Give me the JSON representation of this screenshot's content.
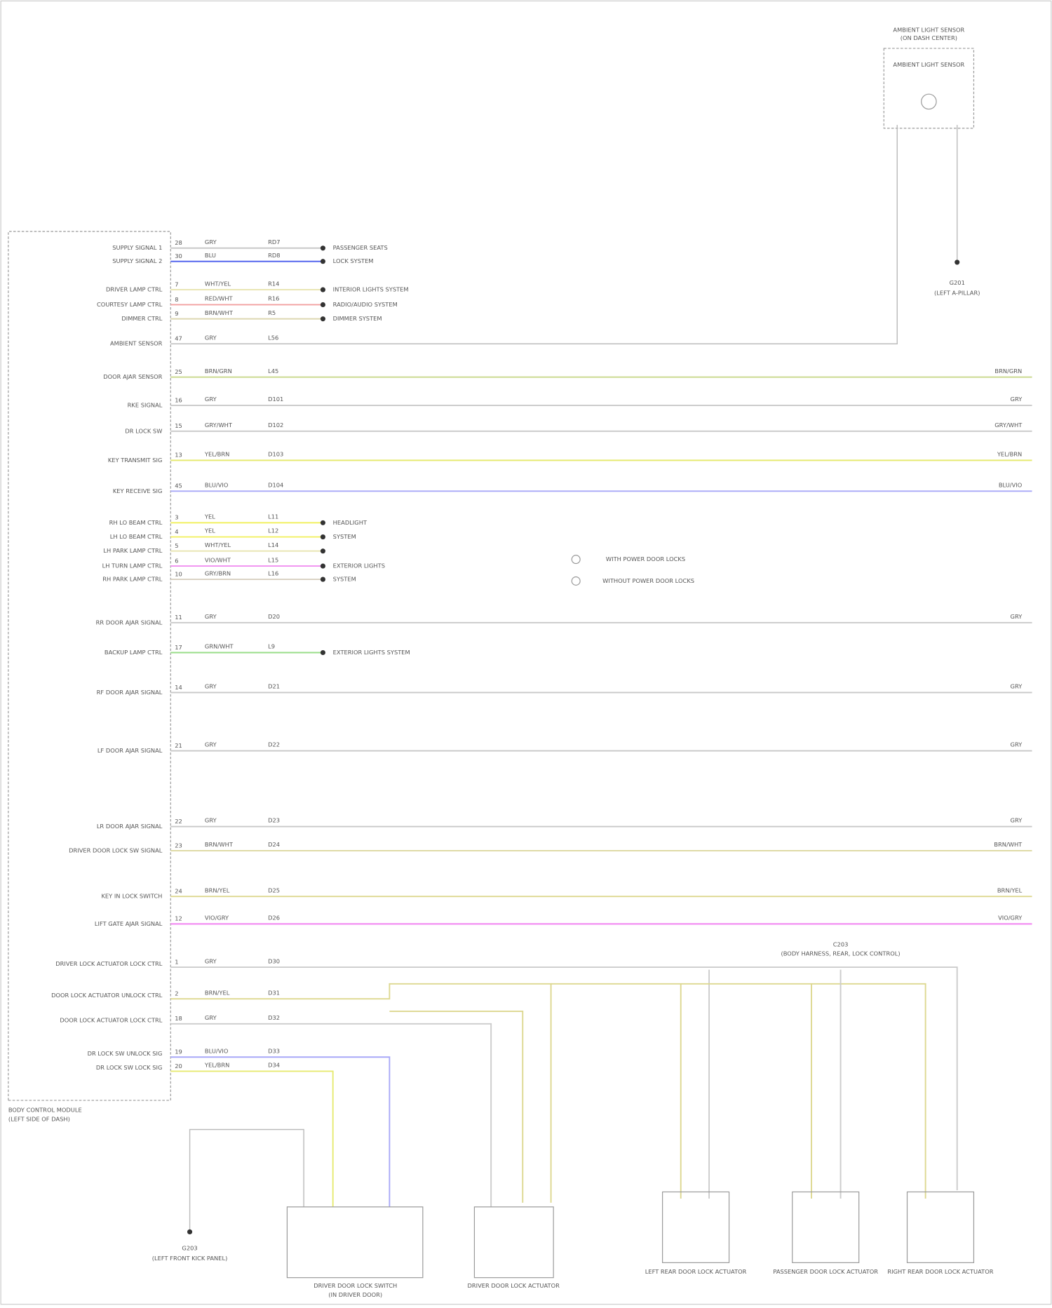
{
  "header": {
    "title": "AMBIENT LIGHT SENSOR",
    "subtitle": "(ON DASH CENTER)",
    "sensor": "AMBIENT LIGHT SENSOR"
  },
  "module": {
    "label": "BODY CONTROL MODULE",
    "location": "(LEFT SIDE OF DASH)"
  },
  "rows": [
    {
      "label": "SUPPLY SIGNAL 1",
      "pin": "28",
      "wire": "GRY",
      "circuit": "RD7",
      "color": "#c8c8c8",
      "dest": "PASSENGER SEATS"
    },
    {
      "label": "SUPPLY SIGNAL 2",
      "pin": "30",
      "wire": "BLU",
      "circuit": "RD8",
      "color": "#5566ee",
      "dest": "LOCK SYSTEM"
    },
    {
      "label": "DRIVER LAMP CTRL",
      "pin": "7",
      "wire": "WHT/YEL",
      "circuit": "R14",
      "color": "#e8e4b0",
      "dest": "INTERIOR LIGHTS SYSTEM"
    },
    {
      "label": "COURTESY LAMP CTRL",
      "pin": "8",
      "wire": "RED/WHT",
      "circuit": "R16",
      "color": "#f2a0a0",
      "dest": "RADIO/AUDIO SYSTEM"
    },
    {
      "label": "DIMMER CTRL",
      "pin": "9",
      "wire": "BRN/WHT",
      "circuit": "R5",
      "color": "#ddd8b0",
      "dest": "DIMMER SYSTEM"
    },
    {
      "label": "AMBIENT SENSOR",
      "pin": "47",
      "wire": "GRY",
      "circuit": "L56",
      "color": "#c8c8c8"
    },
    {
      "label": "DOOR AJAR SENSOR",
      "pin": "25",
      "wire": "BRN/GRN",
      "circuit": "L45",
      "color": "#c8d88a",
      "dest": "BRN/GRN"
    },
    {
      "label": "RKE SIGNAL",
      "pin": "16",
      "wire": "GRY",
      "circuit": "D101",
      "color": "#c8c8c8",
      "dest": "GRY"
    },
    {
      "label": "DR LOCK SW",
      "pin": "15",
      "wire": "GRY/WHT",
      "circuit": "D102",
      "color": "#c8c8c8",
      "dest": "GRY/WHT"
    },
    {
      "label": "KEY TRANSMIT SIG",
      "pin": "13",
      "wire": "YEL/BRN",
      "circuit": "D103",
      "color": "#e6ea70",
      "dest": "YEL/BRN"
    },
    {
      "label": "KEY RECEIVE SIG",
      "pin": "45",
      "wire": "BLU/VIO",
      "circuit": "D104",
      "color": "#a8a8f8",
      "dest": "BLU/VIO"
    },
    {
      "label": "RH LO BEAM CTRL",
      "pin": "3",
      "wire": "YEL",
      "circuit": "L11",
      "color": "#f2f060",
      "dest": "HEADLIGHT"
    },
    {
      "label": "LH LO BEAM CTRL",
      "pin": "4",
      "wire": "YEL",
      "circuit": "L12",
      "color": "#f2f060",
      "dest": "SYSTEM"
    },
    {
      "label": "LH PARK LAMP CTRL",
      "pin": "5",
      "wire": "WHT/YEL",
      "circuit": "L14",
      "color": "#e8e4b0",
      "dest": ""
    },
    {
      "label": "LH TURN LAMP CTRL",
      "pin": "6",
      "wire": "VIO/WHT",
      "circuit": "L15",
      "color": "#f090f0",
      "dest": "EXTERIOR LIGHTS"
    },
    {
      "label": "RH PARK LAMP CTRL",
      "pin": "10",
      "wire": "GRY/BRN",
      "circuit": "L16",
      "color": "#d8d0c0",
      "dest": "SYSTEM"
    },
    {
      "label": "RR DOOR AJAR SIGNAL",
      "pin": "11",
      "wire": "GRY",
      "circuit": "D20",
      "color": "#c8c8c8",
      "dest": "GRY"
    },
    {
      "label": "BACKUP LAMP CTRL",
      "pin": "17",
      "wire": "GRN/WHT",
      "circuit": "L9",
      "color": "#99dd88",
      "dest": "EXTERIOR LIGHTS SYSTEM"
    },
    {
      "label": "RF DOOR AJAR SIGNAL",
      "pin": "14",
      "wire": "GRY",
      "circuit": "D21",
      "color": "#c8c8c8",
      "dest": "GRY"
    },
    {
      "label": "LF DOOR AJAR SIGNAL",
      "pin": "21",
      "wire": "GRY",
      "circuit": "D22",
      "color": "#c8c8c8",
      "dest": "GRY"
    },
    {
      "label": "LR DOOR AJAR SIGNAL",
      "pin": "22",
      "wire": "GRY",
      "circuit": "D23",
      "color": "#c8c8c8",
      "dest": "GRY"
    },
    {
      "label": "DRIVER DOOR LOCK SW SIGNAL",
      "pin": "23",
      "wire": "BRN/WHT",
      "circuit": "D24",
      "color": "#ddd8a0",
      "dest": "BRN/WHT"
    },
    {
      "label": "KEY IN LOCK SWITCH",
      "pin": "24",
      "wire": "BRN/YEL",
      "circuit": "D25",
      "color": "#ddd890",
      "dest": "BRN/YEL"
    },
    {
      "label": "LIFT GATE AJAR SIGNAL",
      "pin": "12",
      "wire": "VIO/GRY",
      "circuit": "D26",
      "color": "#f080f0",
      "dest": "VIO/GRY"
    }
  ],
  "lower": {
    "rows": [
      {
        "label": "DRIVER LOCK ACTUATOR LOCK CTRL",
        "pin": "1",
        "wire": "GRY",
        "circuit": "D30"
      },
      {
        "label": "DOOR LOCK ACTUATOR UNLOCK CTRL",
        "pin": "2",
        "wire": "BRN/YEL",
        "circuit": "D31"
      },
      {
        "label": "DOOR LOCK ACTUATOR LOCK CTRL",
        "pin": "18",
        "wire": "GRY",
        "circuit": "D32"
      },
      {
        "label": "DR LOCK SW UNLOCK SIG",
        "pin": "19",
        "wire": "BLU/VIO",
        "circuit": "D33"
      },
      {
        "label": "DR LOCK SW LOCK SIG",
        "pin": "20",
        "wire": "YEL/BRN",
        "circuit": "D34"
      }
    ],
    "ground1": "G203",
    "ground1_loc": "(LEFT FRONT KICK PANEL)",
    "ground2": "G201",
    "ground2_loc": "(LEFT A-PILLAR)",
    "splice": "C203",
    "splice_label": "(BODY HARNESS, REAR, LOCK CONTROL)",
    "switch": "DRIVER DOOR LOCK SWITCH",
    "switch_loc": "(IN DRIVER DOOR)",
    "act1": "DRIVER DOOR LOCK ACTUATOR",
    "act2": "LEFT REAR DOOR LOCK ACTUATOR",
    "act3": "PASSENGER DOOR LOCK ACTUATOR",
    "act4": "RIGHT REAR DOOR LOCK ACTUATOR"
  },
  "legend": [
    "WITH POWER DOOR LOCKS",
    "WITHOUT POWER DOOR LOCKS"
  ]
}
